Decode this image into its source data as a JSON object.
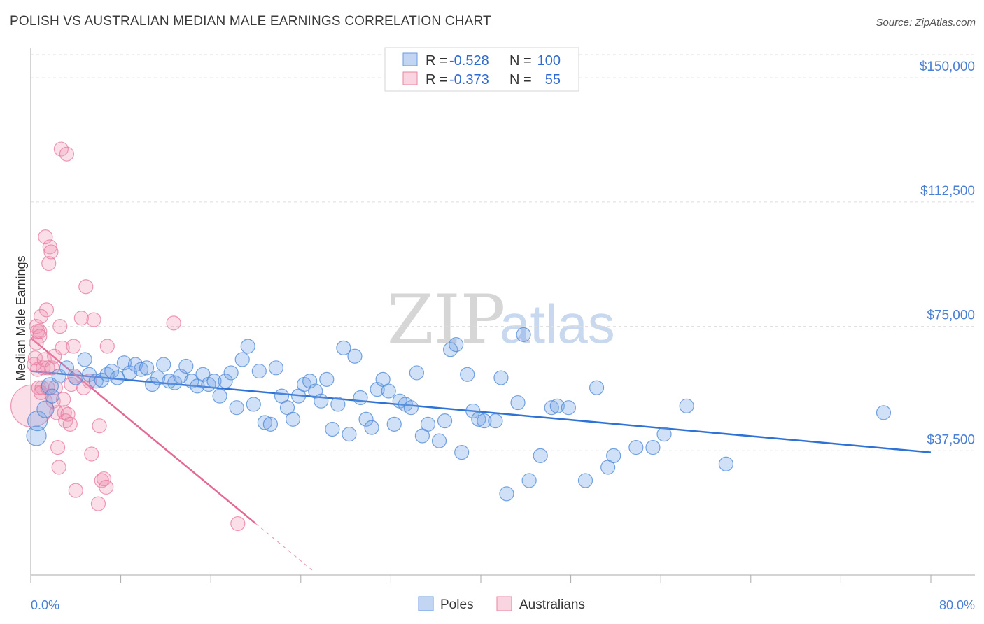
{
  "header": {
    "title": "POLISH VS AUSTRALIAN MEDIAN MALE EARNINGS CORRELATION CHART",
    "source": "Source: ZipAtlas.com"
  },
  "watermark": {
    "part1": "ZIP",
    "part2": "atlas"
  },
  "colors": {
    "poles": "#4a86d8",
    "poles_fill": "rgba(120,165,230,0.35)",
    "australians": "#e8779e",
    "australians_fill": "rgba(240,150,180,0.30)",
    "grid": "#dddddd",
    "tick_label": "#4a7fd4"
  },
  "legend_top": {
    "rows": [
      {
        "r_label": "R = ",
        "r_value": "-0.528",
        "n_label": "N = ",
        "n_value": "100"
      },
      {
        "r_label": "R = ",
        "r_value": "-0.373",
        "n_label": "N = ",
        "n_value": "55"
      }
    ]
  },
  "chart_data": {
    "type": "scatter",
    "title": "POLISH VS AUSTRALIAN MEDIAN MALE EARNINGS CORRELATION CHART",
    "xlabel": "",
    "ylabel": "Median Male Earnings",
    "xlim": [
      0,
      80
    ],
    "ylim": [
      0,
      157000
    ],
    "x_tick_labels": [
      "0.0%",
      "80.0%"
    ],
    "y_ticks": [
      37500,
      75000,
      112500,
      150000
    ],
    "y_tick_labels": [
      "$37,500",
      "$75,000",
      "$112,500",
      "$150,000"
    ],
    "grid": "horizontal dashed",
    "legend_placement": "top-center and bottom-center",
    "series": [
      {
        "name": "Poles",
        "r": -0.528,
        "n": 100,
        "trend": {
          "x": [
            0,
            80
          ],
          "y": [
            61500,
            37000
          ]
        },
        "points": [
          [
            0.5,
            42000,
            14
          ],
          [
            0.6,
            46500,
            14
          ],
          [
            1.3,
            50000,
            12
          ],
          [
            1.7,
            57000,
            12
          ],
          [
            1.9,
            54000,
            10
          ],
          [
            2.5,
            60000,
            10
          ],
          [
            3.2,
            62500,
            10
          ],
          [
            4.0,
            59500,
            10
          ],
          [
            4.8,
            65000,
            10
          ],
          [
            5.2,
            60500,
            10
          ],
          [
            5.8,
            58500,
            10
          ],
          [
            6.3,
            58800,
            10
          ],
          [
            6.8,
            60500,
            10
          ],
          [
            7.2,
            61500,
            10
          ],
          [
            7.7,
            59500,
            10
          ],
          [
            8.3,
            64000,
            10
          ],
          [
            8.8,
            61000,
            10
          ],
          [
            9.3,
            63500,
            10
          ],
          [
            9.8,
            62000,
            10
          ],
          [
            10.3,
            62500,
            10
          ],
          [
            10.8,
            57500,
            10
          ],
          [
            11.3,
            59500,
            10
          ],
          [
            11.8,
            63500,
            10
          ],
          [
            12.3,
            58500,
            10
          ],
          [
            12.8,
            58000,
            10
          ],
          [
            13.3,
            60000,
            10
          ],
          [
            13.8,
            63000,
            10
          ],
          [
            14.3,
            58500,
            10
          ],
          [
            14.8,
            57000,
            10
          ],
          [
            15.3,
            60500,
            10
          ],
          [
            15.8,
            57500,
            10
          ],
          [
            16.3,
            58500,
            10
          ],
          [
            16.8,
            54000,
            10
          ],
          [
            17.3,
            58500,
            10
          ],
          [
            17.8,
            61000,
            10
          ],
          [
            18.3,
            50500,
            10
          ],
          [
            18.8,
            65000,
            10
          ],
          [
            19.3,
            69000,
            10
          ],
          [
            19.8,
            51500,
            10
          ],
          [
            20.3,
            61500,
            10
          ],
          [
            20.8,
            46000,
            10
          ],
          [
            21.3,
            45500,
            10
          ],
          [
            21.8,
            62500,
            10
          ],
          [
            22.3,
            54000,
            10
          ],
          [
            22.8,
            50500,
            10
          ],
          [
            23.3,
            47000,
            10
          ],
          [
            23.8,
            54000,
            10
          ],
          [
            24.3,
            57500,
            10
          ],
          [
            24.8,
            58500,
            10
          ],
          [
            25.3,
            55500,
            10
          ],
          [
            25.8,
            52500,
            10
          ],
          [
            26.3,
            59000,
            10
          ],
          [
            26.8,
            44000,
            10
          ],
          [
            27.3,
            51500,
            10
          ],
          [
            27.8,
            68500,
            10
          ],
          [
            28.3,
            42500,
            10
          ],
          [
            28.8,
            66000,
            10
          ],
          [
            29.3,
            53500,
            10
          ],
          [
            29.8,
            47000,
            10
          ],
          [
            30.3,
            44500,
            10
          ],
          [
            30.8,
            56000,
            10
          ],
          [
            31.3,
            59000,
            10
          ],
          [
            31.8,
            55500,
            10
          ],
          [
            32.3,
            45500,
            10
          ],
          [
            32.8,
            52500,
            10
          ],
          [
            33.3,
            51500,
            10
          ],
          [
            33.8,
            50500,
            10
          ],
          [
            34.3,
            61000,
            10
          ],
          [
            34.8,
            42000,
            10
          ],
          [
            35.3,
            45500,
            10
          ],
          [
            36.3,
            40500,
            10
          ],
          [
            36.8,
            46500,
            10
          ],
          [
            37.3,
            68000,
            10
          ],
          [
            37.8,
            69500,
            10
          ],
          [
            38.3,
            37000,
            10
          ],
          [
            38.8,
            60500,
            10
          ],
          [
            39.3,
            49500,
            10
          ],
          [
            39.8,
            47000,
            10
          ],
          [
            40.3,
            46500,
            10
          ],
          [
            41.3,
            46500,
            10
          ],
          [
            41.8,
            59500,
            10
          ],
          [
            42.3,
            24500,
            10
          ],
          [
            43.3,
            52000,
            10
          ],
          [
            43.8,
            72500,
            10
          ],
          [
            44.3,
            28500,
            10
          ],
          [
            45.3,
            36000,
            10
          ],
          [
            46.3,
            50500,
            10
          ],
          [
            46.8,
            51000,
            10
          ],
          [
            47.8,
            50500,
            10
          ],
          [
            49.3,
            28500,
            10
          ],
          [
            50.3,
            56500,
            10
          ],
          [
            51.3,
            32500,
            10
          ],
          [
            51.8,
            36000,
            10
          ],
          [
            53.8,
            38500,
            10
          ],
          [
            55.3,
            38500,
            10
          ],
          [
            56.3,
            42500,
            10
          ],
          [
            58.3,
            51000,
            10
          ],
          [
            61.8,
            33500,
            10
          ],
          [
            75.8,
            49000,
            10
          ]
        ]
      },
      {
        "name": "Australians",
        "r": -0.373,
        "n": 55,
        "trend": {
          "x": [
            0,
            20
          ],
          "y": [
            71500,
            15500
          ]
        },
        "trend_extension": {
          "x": [
            20,
            25
          ],
          "y": [
            15500,
            1500
          ]
        },
        "points": [
          [
            0.1,
            51000,
            30
          ],
          [
            0.3,
            63500,
            10
          ],
          [
            0.4,
            65500,
            10
          ],
          [
            0.5,
            70000,
            10
          ],
          [
            0.5,
            75000,
            10
          ],
          [
            0.6,
            73500,
            10
          ],
          [
            0.6,
            62000,
            10
          ],
          [
            0.7,
            56500,
            10
          ],
          [
            0.8,
            73500,
            10
          ],
          [
            0.8,
            72000,
            10
          ],
          [
            0.9,
            78000,
            10
          ],
          [
            0.9,
            55000,
            10
          ],
          [
            1.0,
            56500,
            10
          ],
          [
            1.1,
            62500,
            10
          ],
          [
            1.2,
            65000,
            10
          ],
          [
            1.3,
            102000,
            10
          ],
          [
            1.4,
            80000,
            10
          ],
          [
            1.5,
            62500,
            10
          ],
          [
            1.5,
            56500,
            10
          ],
          [
            1.6,
            94000,
            10
          ],
          [
            1.7,
            99000,
            10
          ],
          [
            1.8,
            97500,
            10
          ],
          [
            1.9,
            62500,
            10
          ],
          [
            2.0,
            52500,
            10
          ],
          [
            2.1,
            66000,
            10
          ],
          [
            2.2,
            56500,
            10
          ],
          [
            2.3,
            49000,
            10
          ],
          [
            2.4,
            38500,
            10
          ],
          [
            2.5,
            32500,
            10
          ],
          [
            2.6,
            75000,
            10
          ],
          [
            2.7,
            128500,
            10
          ],
          [
            2.8,
            68500,
            10
          ],
          [
            2.9,
            53000,
            10
          ],
          [
            3.0,
            49000,
            10
          ],
          [
            3.1,
            46500,
            10
          ],
          [
            3.2,
            127000,
            10
          ],
          [
            3.3,
            48500,
            10
          ],
          [
            3.5,
            45500,
            10
          ],
          [
            3.6,
            57500,
            10
          ],
          [
            3.8,
            69000,
            10
          ],
          [
            3.9,
            60000,
            10
          ],
          [
            4.0,
            25500,
            10
          ],
          [
            4.5,
            77500,
            10
          ],
          [
            4.7,
            56500,
            10
          ],
          [
            4.9,
            87000,
            10
          ],
          [
            5.2,
            58500,
            10
          ],
          [
            5.4,
            36500,
            10
          ],
          [
            5.6,
            77000,
            10
          ],
          [
            6.0,
            21500,
            10
          ],
          [
            6.1,
            45000,
            10
          ],
          [
            6.3,
            28500,
            10
          ],
          [
            6.5,
            29000,
            10
          ],
          [
            6.7,
            26500,
            10
          ],
          [
            6.8,
            69000,
            10
          ],
          [
            12.7,
            76000,
            10
          ],
          [
            18.4,
            15500,
            10
          ]
        ]
      }
    ]
  },
  "bottom_legend": {
    "items": [
      {
        "label": "Poles"
      },
      {
        "label": "Australians"
      }
    ]
  }
}
